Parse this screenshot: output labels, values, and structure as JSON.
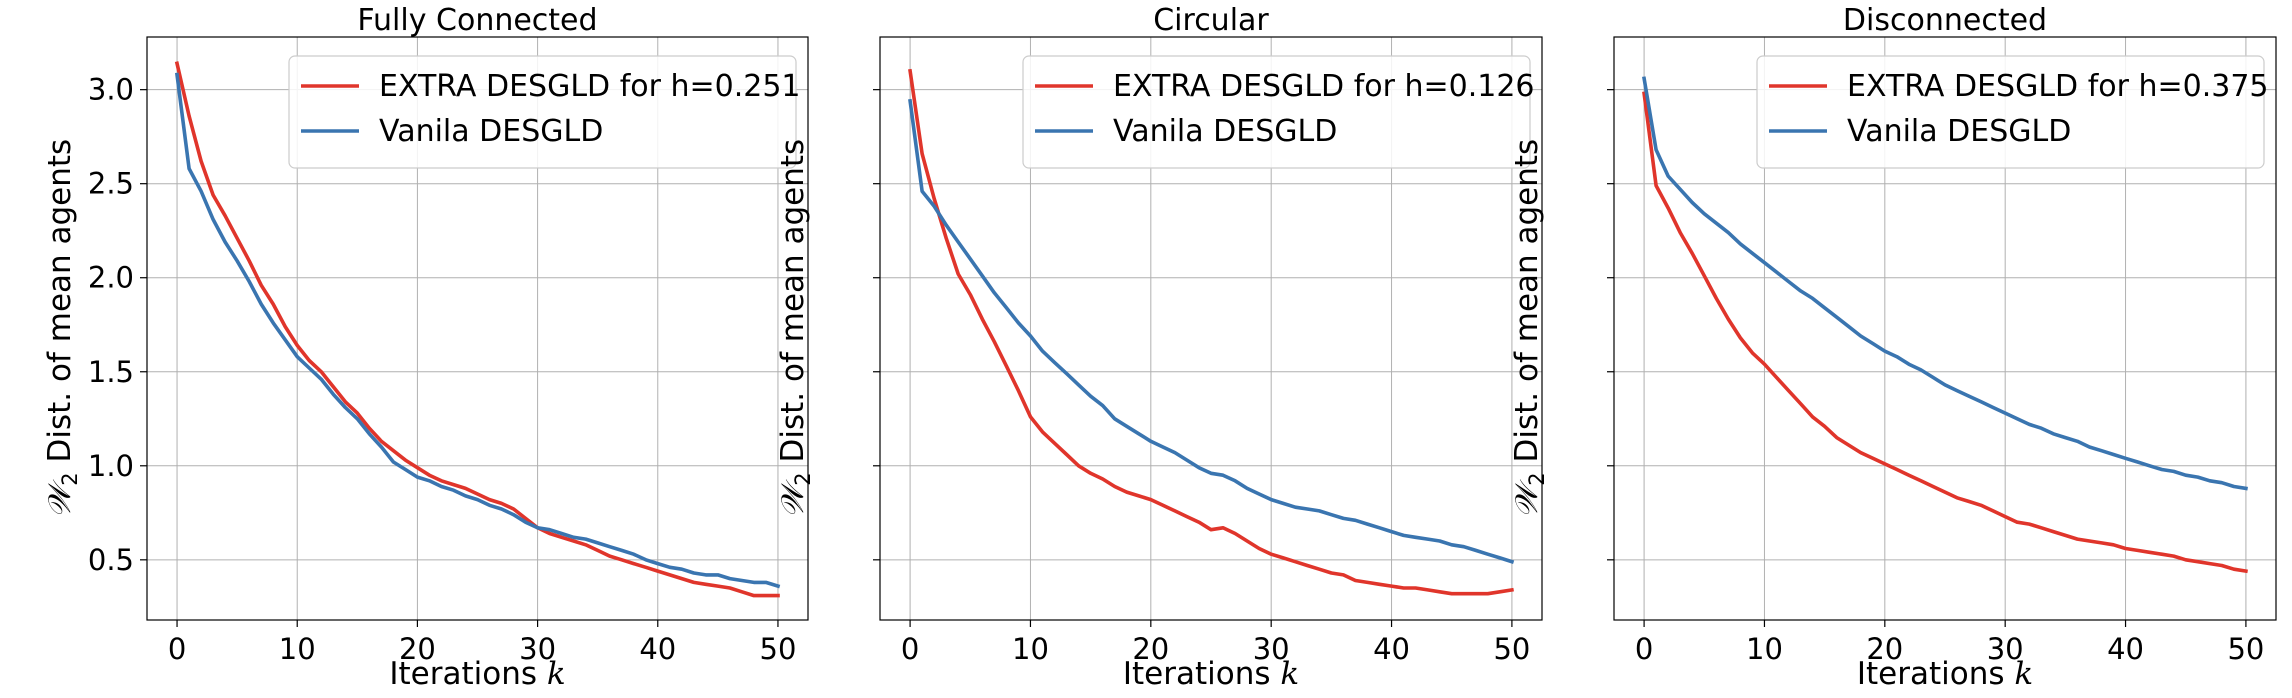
{
  "chart_data": [
    {
      "type": "line",
      "title": "Fully Connected",
      "xlabel": "Iterations",
      "xlabel_var": "k",
      "ylabel_prefix": "𝒲",
      "ylabel_sub": "2",
      "ylabel_rest": " Dist. of mean agents",
      "xlim": [
        -2.5,
        52.5
      ],
      "ylim": [
        0.18,
        3.28
      ],
      "xticks": [
        0,
        10,
        20,
        30,
        40,
        50
      ],
      "yticks": [
        0.5,
        1.0,
        1.5,
        2.0,
        2.5,
        3.0
      ],
      "ytick_labels": [
        "0.5",
        "1.0",
        "1.5",
        "2.0",
        "2.5",
        "3.0"
      ],
      "show_ytick_labels": true,
      "grid": true,
      "legend_position": "top-right",
      "series": [
        {
          "name": "EXTRA DESGLD for h=0.251",
          "color": "#e0352b",
          "x": [
            0,
            1,
            2,
            3,
            4,
            5,
            6,
            7,
            8,
            9,
            10,
            11,
            12,
            13,
            14,
            15,
            16,
            17,
            18,
            19,
            20,
            21,
            22,
            23,
            24,
            25,
            26,
            27,
            28,
            29,
            30,
            31,
            32,
            33,
            34,
            35,
            36,
            37,
            38,
            39,
            40,
            41,
            42,
            43,
            44,
            45,
            46,
            47,
            48,
            49,
            50
          ],
          "y": [
            3.14,
            2.86,
            2.62,
            2.44,
            2.33,
            2.21,
            2.09,
            1.96,
            1.86,
            1.74,
            1.64,
            1.56,
            1.5,
            1.42,
            1.34,
            1.28,
            1.2,
            1.13,
            1.08,
            1.03,
            0.99,
            0.95,
            0.92,
            0.9,
            0.88,
            0.85,
            0.82,
            0.8,
            0.77,
            0.72,
            0.67,
            0.64,
            0.62,
            0.6,
            0.58,
            0.55,
            0.52,
            0.5,
            0.48,
            0.46,
            0.44,
            0.42,
            0.4,
            0.38,
            0.37,
            0.36,
            0.35,
            0.33,
            0.31,
            0.31,
            0.31
          ]
        },
        {
          "name": "Vanila DESGLD",
          "color": "#3a75b0",
          "x": [
            0,
            1,
            2,
            3,
            4,
            5,
            6,
            7,
            8,
            9,
            10,
            11,
            12,
            13,
            14,
            15,
            16,
            17,
            18,
            19,
            20,
            21,
            22,
            23,
            24,
            25,
            26,
            27,
            28,
            29,
            30,
            31,
            32,
            33,
            34,
            35,
            36,
            37,
            38,
            39,
            40,
            41,
            42,
            43,
            44,
            45,
            46,
            47,
            48,
            49,
            50
          ],
          "y": [
            3.08,
            2.58,
            2.46,
            2.31,
            2.19,
            2.09,
            1.98,
            1.86,
            1.76,
            1.67,
            1.58,
            1.52,
            1.46,
            1.38,
            1.31,
            1.25,
            1.17,
            1.1,
            1.02,
            0.98,
            0.94,
            0.92,
            0.89,
            0.87,
            0.84,
            0.82,
            0.79,
            0.77,
            0.74,
            0.7,
            0.67,
            0.66,
            0.64,
            0.62,
            0.61,
            0.59,
            0.57,
            0.55,
            0.53,
            0.5,
            0.48,
            0.46,
            0.45,
            0.43,
            0.42,
            0.42,
            0.4,
            0.39,
            0.38,
            0.38,
            0.36
          ]
        }
      ]
    },
    {
      "type": "line",
      "title": "Circular",
      "xlabel": "Iterations",
      "xlabel_var": "k",
      "ylabel_prefix": "𝒲",
      "ylabel_sub": "2",
      "ylabel_rest": " Dist. of mean agents",
      "xlim": [
        -2.5,
        52.5
      ],
      "ylim": [
        0.18,
        3.28
      ],
      "xticks": [
        0,
        10,
        20,
        30,
        40,
        50
      ],
      "yticks": [
        0.5,
        1.0,
        1.5,
        2.0,
        2.5,
        3.0
      ],
      "ytick_labels": [
        "0.5",
        "1.0",
        "1.5",
        "2.0",
        "2.5",
        "3.0"
      ],
      "show_ytick_labels": false,
      "grid": true,
      "legend_position": "top-right",
      "series": [
        {
          "name": "EXTRA DESGLD for h=0.126",
          "color": "#e0352b",
          "x": [
            0,
            1,
            2,
            3,
            4,
            5,
            6,
            7,
            8,
            9,
            10,
            11,
            12,
            13,
            14,
            15,
            16,
            17,
            18,
            19,
            20,
            21,
            22,
            23,
            24,
            25,
            26,
            27,
            28,
            29,
            30,
            31,
            32,
            33,
            34,
            35,
            36,
            37,
            38,
            39,
            40,
            41,
            42,
            43,
            44,
            45,
            46,
            47,
            48,
            49,
            50
          ],
          "y": [
            3.1,
            2.66,
            2.42,
            2.21,
            2.02,
            1.91,
            1.78,
            1.66,
            1.53,
            1.4,
            1.26,
            1.18,
            1.12,
            1.06,
            1.0,
            0.96,
            0.93,
            0.89,
            0.86,
            0.84,
            0.82,
            0.79,
            0.76,
            0.73,
            0.7,
            0.66,
            0.67,
            0.64,
            0.6,
            0.56,
            0.53,
            0.51,
            0.49,
            0.47,
            0.45,
            0.43,
            0.42,
            0.39,
            0.38,
            0.37,
            0.36,
            0.35,
            0.35,
            0.34,
            0.33,
            0.32,
            0.32,
            0.32,
            0.32,
            0.33,
            0.34
          ]
        },
        {
          "name": "Vanila DESGLD",
          "color": "#3a75b0",
          "x": [
            0,
            1,
            2,
            3,
            4,
            5,
            6,
            7,
            8,
            9,
            10,
            11,
            12,
            13,
            14,
            15,
            16,
            17,
            18,
            19,
            20,
            21,
            22,
            23,
            24,
            25,
            26,
            27,
            28,
            29,
            30,
            31,
            32,
            33,
            34,
            35,
            36,
            37,
            38,
            39,
            40,
            41,
            42,
            43,
            44,
            45,
            46,
            47,
            48,
            49,
            50
          ],
          "y": [
            2.94,
            2.46,
            2.38,
            2.28,
            2.19,
            2.1,
            2.01,
            1.92,
            1.84,
            1.76,
            1.69,
            1.61,
            1.55,
            1.49,
            1.43,
            1.37,
            1.32,
            1.25,
            1.21,
            1.17,
            1.13,
            1.1,
            1.07,
            1.03,
            0.99,
            0.96,
            0.95,
            0.92,
            0.88,
            0.85,
            0.82,
            0.8,
            0.78,
            0.77,
            0.76,
            0.74,
            0.72,
            0.71,
            0.69,
            0.67,
            0.65,
            0.63,
            0.62,
            0.61,
            0.6,
            0.58,
            0.57,
            0.55,
            0.53,
            0.51,
            0.49
          ]
        }
      ]
    },
    {
      "type": "line",
      "title": "Disconnected",
      "xlabel": "Iterations",
      "xlabel_var": "k",
      "ylabel_prefix": "𝒲",
      "ylabel_sub": "2",
      "ylabel_rest": " Dist. of mean agents",
      "xlim": [
        -2.5,
        52.5
      ],
      "ylim": [
        0.18,
        3.28
      ],
      "xticks": [
        0,
        10,
        20,
        30,
        40,
        50
      ],
      "yticks": [
        0.5,
        1.0,
        1.5,
        2.0,
        2.5,
        3.0
      ],
      "ytick_labels": [
        "0.5",
        "1.0",
        "1.5",
        "2.0",
        "2.5",
        "3.0"
      ],
      "show_ytick_labels": false,
      "grid": true,
      "legend_position": "top-right",
      "series": [
        {
          "name": "EXTRA DESGLD for h=0.375",
          "color": "#e0352b",
          "x": [
            0,
            1,
            2,
            3,
            4,
            5,
            6,
            7,
            8,
            9,
            10,
            11,
            12,
            13,
            14,
            15,
            16,
            17,
            18,
            19,
            20,
            21,
            22,
            23,
            24,
            25,
            26,
            27,
            28,
            29,
            30,
            31,
            32,
            33,
            34,
            35,
            36,
            37,
            38,
            39,
            40,
            41,
            42,
            43,
            44,
            45,
            46,
            47,
            48,
            49,
            50
          ],
          "y": [
            2.98,
            2.49,
            2.37,
            2.24,
            2.13,
            2.01,
            1.89,
            1.78,
            1.68,
            1.6,
            1.54,
            1.47,
            1.4,
            1.33,
            1.26,
            1.21,
            1.15,
            1.11,
            1.07,
            1.04,
            1.01,
            0.98,
            0.95,
            0.92,
            0.89,
            0.86,
            0.83,
            0.81,
            0.79,
            0.76,
            0.73,
            0.7,
            0.69,
            0.67,
            0.65,
            0.63,
            0.61,
            0.6,
            0.59,
            0.58,
            0.56,
            0.55,
            0.54,
            0.53,
            0.52,
            0.5,
            0.49,
            0.48,
            0.47,
            0.45,
            0.44
          ]
        },
        {
          "name": "Vanila DESGLD",
          "color": "#3a75b0",
          "x": [
            0,
            1,
            2,
            3,
            4,
            5,
            6,
            7,
            8,
            9,
            10,
            11,
            12,
            13,
            14,
            15,
            16,
            17,
            18,
            19,
            20,
            21,
            22,
            23,
            24,
            25,
            26,
            27,
            28,
            29,
            30,
            31,
            32,
            33,
            34,
            35,
            36,
            37,
            38,
            39,
            40,
            41,
            42,
            43,
            44,
            45,
            46,
            47,
            48,
            49,
            50
          ],
          "y": [
            3.06,
            2.68,
            2.54,
            2.47,
            2.4,
            2.34,
            2.29,
            2.24,
            2.18,
            2.13,
            2.08,
            2.03,
            1.98,
            1.93,
            1.89,
            1.84,
            1.79,
            1.74,
            1.69,
            1.65,
            1.61,
            1.58,
            1.54,
            1.51,
            1.47,
            1.43,
            1.4,
            1.37,
            1.34,
            1.31,
            1.28,
            1.25,
            1.22,
            1.2,
            1.17,
            1.15,
            1.13,
            1.1,
            1.08,
            1.06,
            1.04,
            1.02,
            1.0,
            0.98,
            0.97,
            0.95,
            0.94,
            0.92,
            0.91,
            0.89,
            0.88
          ]
        }
      ]
    }
  ]
}
